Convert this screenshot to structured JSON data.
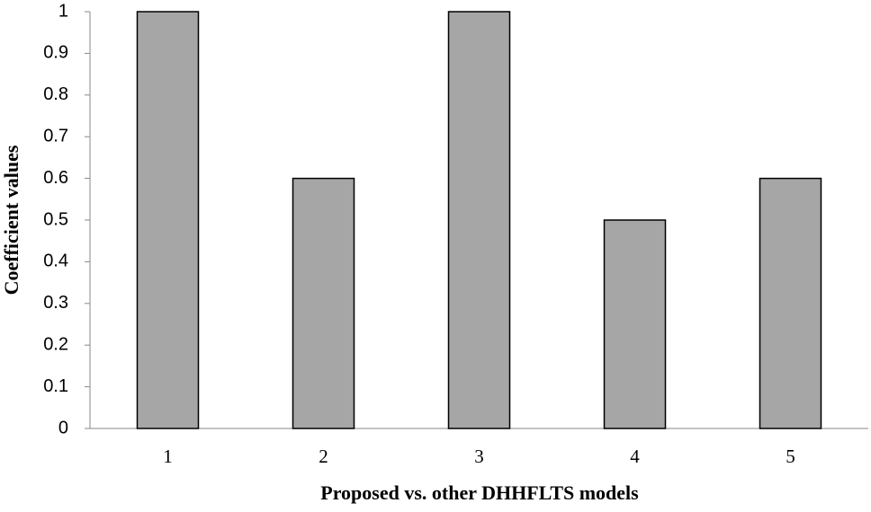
{
  "chart_data": {
    "type": "bar",
    "x_label": "Proposed vs. other DHHFLTS models",
    "y_label": "Coefficient values",
    "categories": [
      "1",
      "2",
      "3",
      "4",
      "5"
    ],
    "values": [
      1,
      0.6,
      1,
      0.5,
      0.6
    ],
    "color": "#a6a6a6",
    "ylim": [
      0,
      1
    ],
    "yticks": [
      0,
      0.1,
      0.2,
      0.3,
      0.4,
      0.5,
      0.6,
      0.7,
      0.8,
      0.9,
      1
    ],
    "grid": false
  }
}
